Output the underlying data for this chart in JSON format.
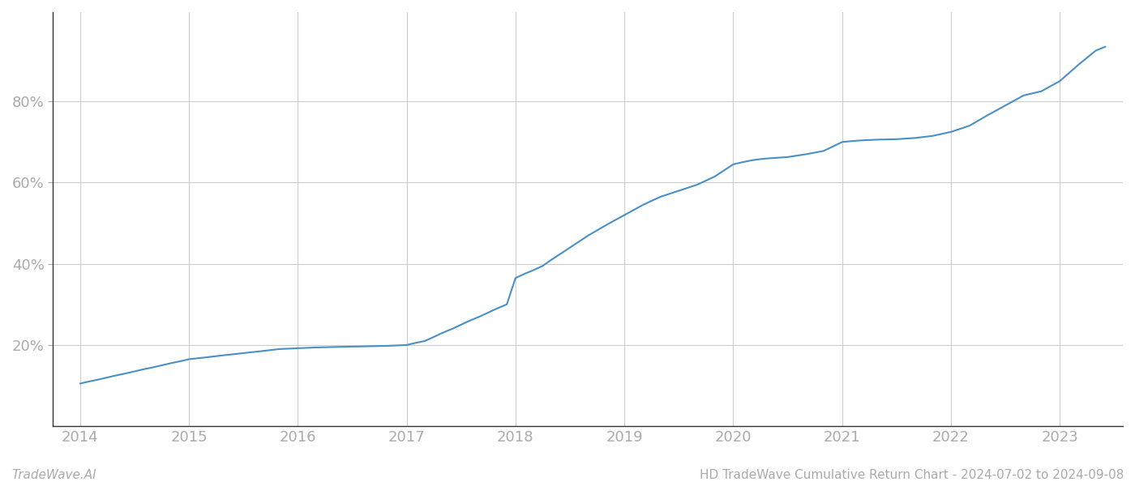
{
  "title": "HD TradeWave Cumulative Return Chart - 2024-07-02 to 2024-09-08",
  "watermark": "TradeWave.AI",
  "line_color": "#4a90c4",
  "line_width": 1.5,
  "background_color": "#ffffff",
  "grid_color": "#cccccc",
  "x_years": [
    2014.0,
    2014.08,
    2014.17,
    2014.25,
    2014.33,
    2014.42,
    2014.5,
    2014.58,
    2014.67,
    2014.75,
    2014.83,
    2014.92,
    2015.0,
    2015.17,
    2015.33,
    2015.5,
    2015.67,
    2015.83,
    2016.0,
    2016.17,
    2016.33,
    2016.5,
    2016.67,
    2016.83,
    2017.0,
    2017.08,
    2017.17,
    2017.25,
    2017.33,
    2017.42,
    2017.5,
    2017.58,
    2017.67,
    2017.75,
    2017.83,
    2017.92,
    2018.0,
    2018.08,
    2018.17,
    2018.25,
    2018.33,
    2018.5,
    2018.67,
    2018.83,
    2019.0,
    2019.17,
    2019.33,
    2019.5,
    2019.67,
    2019.83,
    2020.0,
    2020.08,
    2020.17,
    2020.25,
    2020.33,
    2020.5,
    2020.67,
    2020.83,
    2021.0,
    2021.08,
    2021.17,
    2021.25,
    2021.33,
    2021.5,
    2021.67,
    2021.83,
    2022.0,
    2022.17,
    2022.33,
    2022.5,
    2022.67,
    2022.83,
    2023.0,
    2023.17,
    2023.33,
    2023.42
  ],
  "y_values": [
    10.5,
    11.0,
    11.5,
    12.0,
    12.5,
    13.0,
    13.5,
    14.0,
    14.5,
    15.0,
    15.5,
    16.0,
    16.5,
    17.0,
    17.5,
    18.0,
    18.5,
    19.0,
    19.2,
    19.4,
    19.5,
    19.6,
    19.7,
    19.8,
    20.0,
    20.5,
    21.0,
    22.0,
    23.0,
    24.0,
    25.0,
    26.0,
    27.0,
    28.0,
    29.0,
    30.0,
    36.5,
    37.5,
    38.5,
    39.5,
    41.0,
    44.0,
    47.0,
    49.5,
    52.0,
    54.5,
    56.5,
    58.0,
    59.5,
    61.5,
    64.5,
    65.0,
    65.5,
    65.8,
    66.0,
    66.3,
    67.0,
    67.8,
    70.0,
    70.2,
    70.4,
    70.5,
    70.6,
    70.7,
    71.0,
    71.5,
    72.5,
    74.0,
    76.5,
    79.0,
    81.5,
    82.5,
    85.0,
    89.0,
    92.5,
    93.5
  ],
  "yticks": [
    20,
    40,
    60,
    80
  ],
  "xticks": [
    2014,
    2015,
    2016,
    2017,
    2018,
    2019,
    2020,
    2021,
    2022,
    2023
  ],
  "xlim": [
    2013.75,
    2023.58
  ],
  "ylim": [
    0,
    102
  ]
}
